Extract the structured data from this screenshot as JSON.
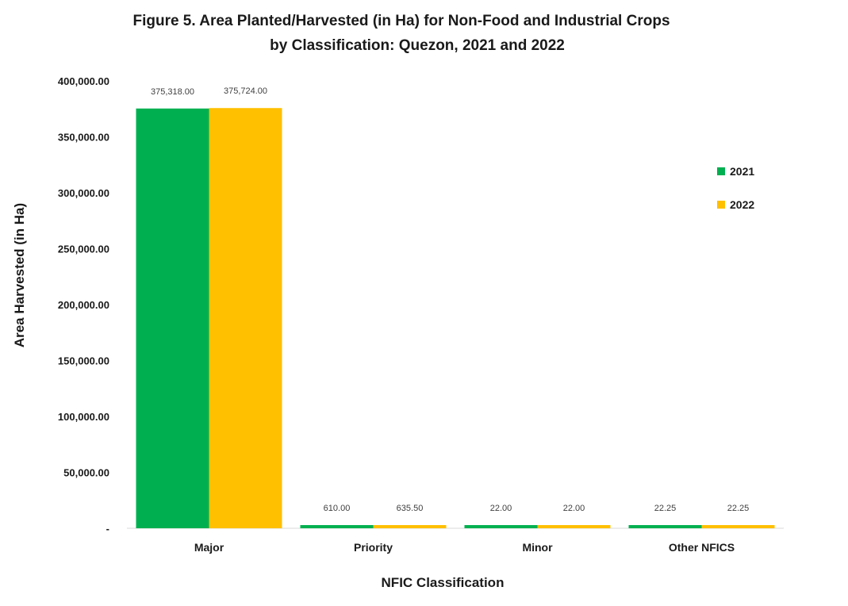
{
  "chart_data": {
    "type": "bar",
    "title": "Figure 5. Area Planted/Harvested (in Ha) for Non-Food and Industrial Crops",
    "subtitle": "by Classification: Quezon, 2021 and 2022",
    "xlabel": "NFIC Classification",
    "ylabel": "Area Harvested (in Ha)",
    "ylim": [
      0,
      400000
    ],
    "y_ticks": [
      0,
      50000,
      100000,
      150000,
      200000,
      250000,
      300000,
      350000,
      400000
    ],
    "y_tick_labels": [
      "-",
      "50,000.00",
      "100,000.00",
      "150,000.00",
      "200,000.00",
      "250,000.00",
      "300,000.00",
      "350,000.00",
      "400,000.00"
    ],
    "categories": [
      "Major",
      "Priority",
      "Minor",
      "Other NFICS"
    ],
    "series": [
      {
        "name": "2021",
        "color": "#00b050",
        "values": [
          375318.0,
          610.0,
          22.0,
          22.25
        ],
        "labels": [
          "375,318.00",
          "610.00",
          "22.00",
          "22.25"
        ]
      },
      {
        "name": "2022",
        "color": "#ffc000",
        "values": [
          375724.0,
          635.5,
          22.0,
          22.25
        ],
        "labels": [
          "375,724.00",
          "635.50",
          "22.00",
          "22.25"
        ]
      }
    ],
    "grid": false,
    "legend_position": "right"
  }
}
